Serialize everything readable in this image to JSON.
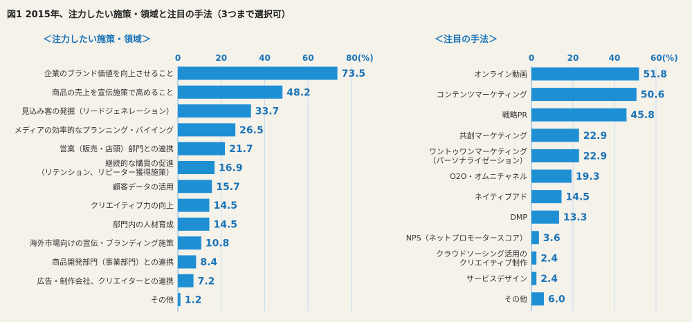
{
  "figure_title": "図1 2015年、注力したい施策・領域と注目の手法（3つまで選択可）",
  "chart_data": [
    {
      "type": "bar",
      "orientation": "horizontal",
      "title": "＜注力したい施策・領域＞",
      "unit_label": "80(%)",
      "ticks": [
        "0",
        "20",
        "40",
        "60",
        "80(%)"
      ],
      "xlim": [
        0,
        80
      ],
      "categories": [
        [
          "企業のブランド価値を向上させること"
        ],
        [
          "商品の売上を宣伝施策で高めること"
        ],
        [
          "見込み客の発掘（リードジェネレーション）"
        ],
        [
          "メディアの効率的なプランニング・バイイング"
        ],
        [
          "営業（販売・店頭）部門との連携"
        ],
        [
          "継続的な購買の促進",
          "（リテンション、リピーター獲得施策）"
        ],
        [
          "顧客データの活用"
        ],
        [
          "クリエイティブ力の向上"
        ],
        [
          "部門内の人材育成"
        ],
        [
          "海外市場向けの宣伝・ブランディング施策"
        ],
        [
          "商品開発部門（事業部門）との連携"
        ],
        [
          "広告・制作会社、クリエイターとの連携"
        ],
        [
          "その他"
        ]
      ],
      "values": [
        73.5,
        48.2,
        33.7,
        26.5,
        21.7,
        16.9,
        15.7,
        14.5,
        14.5,
        10.8,
        8.4,
        7.2,
        1.2
      ]
    },
    {
      "type": "bar",
      "orientation": "horizontal",
      "title": "＜注目の手法＞",
      "unit_label": "60(%)",
      "ticks": [
        "0",
        "20",
        "40",
        "60(%)"
      ],
      "xlim": [
        0,
        60
      ],
      "categories": [
        [
          "オンライン動画"
        ],
        [
          "コンテンツマーケティング"
        ],
        [
          "戦略PR"
        ],
        [
          "共創マーケティング"
        ],
        [
          "ワントゥワンマーケティング",
          "（パーソナライゼーション）"
        ],
        [
          "O2O・オムニチャネル"
        ],
        [
          "ネイティブアド"
        ],
        [
          "DMP"
        ],
        [
          "NPS（ネットプロモータースコア）"
        ],
        [
          "クラウドソーシング活用の",
          "クリエイティブ制作"
        ],
        [
          "サービスデザイン"
        ],
        [
          "その他"
        ]
      ],
      "values": [
        51.8,
        50.6,
        45.8,
        22.9,
        22.9,
        19.3,
        14.5,
        13.3,
        3.6,
        2.4,
        2.4,
        6.0
      ]
    }
  ]
}
